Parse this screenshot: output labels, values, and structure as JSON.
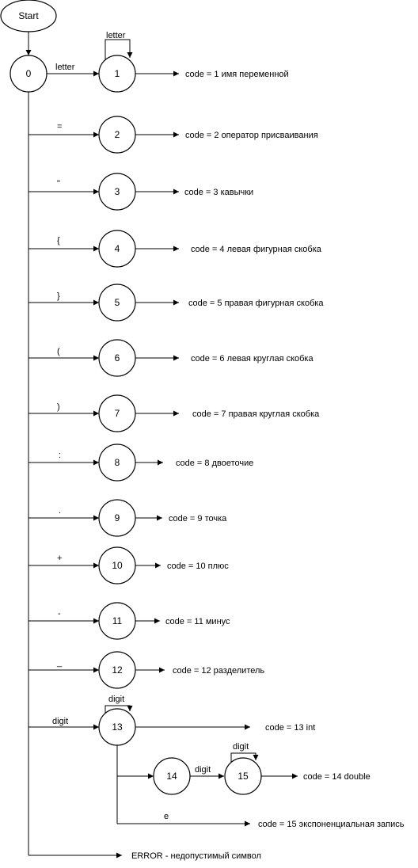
{
  "start": {
    "label": "Start"
  },
  "state0": {
    "label": "0"
  },
  "branches": [
    {
      "edge_label": "letter",
      "state": "1",
      "self_loop": "letter",
      "code": "code = 1 имя переменной"
    },
    {
      "edge_label": "=",
      "state": "2",
      "code": "code = 2 оператор присваивания"
    },
    {
      "edge_label": "\"",
      "state": "3",
      "code": "code = 3 кавычки"
    },
    {
      "edge_label": "{",
      "state": "4",
      "code": "code = 4 левая фигурная скобка"
    },
    {
      "edge_label": "}",
      "state": "5",
      "code": "code = 5 правая фигурная скобка"
    },
    {
      "edge_label": "(",
      "state": "6",
      "code": "code = 6 левая круглая скобка"
    },
    {
      "edge_label": ")",
      "state": "7",
      "code": "code = 7 правая круглая скобка"
    },
    {
      "edge_label": ":",
      "state": "8",
      "code": "code = 8 двоеточие"
    },
    {
      "edge_label": ".",
      "state": "9",
      "code": "code = 9 точка"
    },
    {
      "edge_label": "+",
      "state": "10",
      "code": "code = 10 плюс"
    },
    {
      "edge_label": "-",
      "state": "11",
      "code": "code = 11 минус"
    },
    {
      "edge_label": "_",
      "state": "12",
      "code": "code = 12 разделитель"
    },
    {
      "edge_label": "digit",
      "state": "13",
      "self_loop": "digit",
      "code": "code = 13 int"
    }
  ],
  "state14": {
    "label": "14",
    "edge_to_15": "digit"
  },
  "state15": {
    "label": "15",
    "self_loop": "digit",
    "code": "code = 14 double"
  },
  "exp_edge": {
    "label": "e",
    "code": "code = 15 экспоненциальная запись"
  },
  "error": {
    "label": "ERROR - недопустимый символ"
  }
}
